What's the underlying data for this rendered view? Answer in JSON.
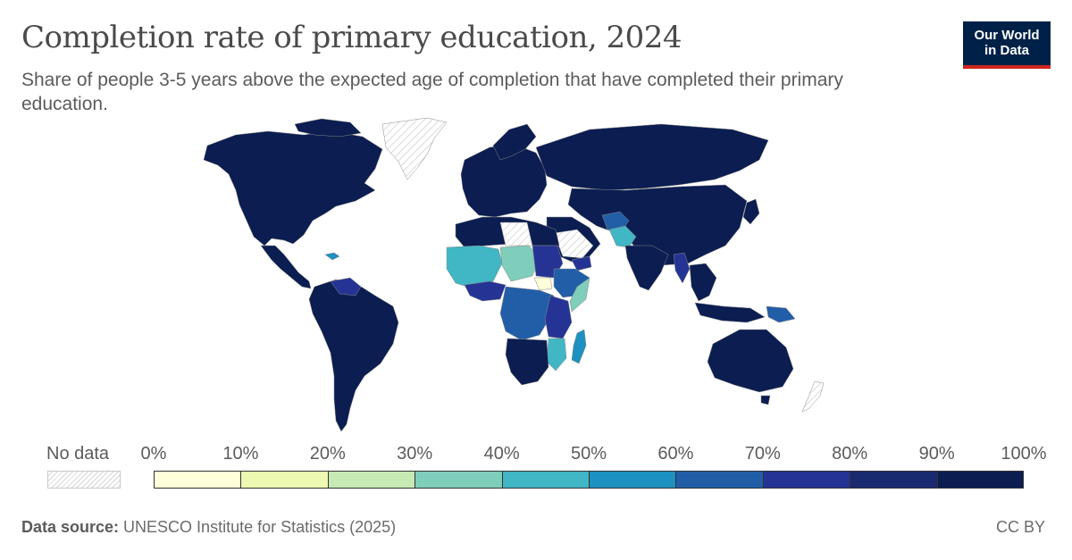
{
  "header": {
    "title": "Completion rate of primary education, 2024",
    "subtitle": "Share of people 3-5 years above the expected age of completion that have completed their primary education."
  },
  "logo": {
    "line1": "Our World",
    "line2": "in Data"
  },
  "legend": {
    "no_data_label": "No data",
    "ticks": [
      "0%",
      "10%",
      "20%",
      "30%",
      "40%",
      "50%",
      "60%",
      "70%",
      "80%",
      "90%",
      "100%"
    ],
    "bins": [
      {
        "from": 0,
        "to": 10,
        "color": "#ffffd9"
      },
      {
        "from": 10,
        "to": 20,
        "color": "#edf8b1"
      },
      {
        "from": 20,
        "to": 30,
        "color": "#c7e9b4"
      },
      {
        "from": 30,
        "to": 40,
        "color": "#7fcdbb"
      },
      {
        "from": 40,
        "to": 50,
        "color": "#41b6c4"
      },
      {
        "from": 50,
        "to": 60,
        "color": "#1d91c0"
      },
      {
        "from": 60,
        "to": 70,
        "color": "#225ea8"
      },
      {
        "from": 70,
        "to": 80,
        "color": "#253494"
      },
      {
        "from": 80,
        "to": 90,
        "color": "#1a2a70"
      },
      {
        "from": 90,
        "to": 100,
        "color": "#0b1d51"
      }
    ],
    "no_data_color": "#e8e8e8"
  },
  "footer": {
    "source_label": "Data source:",
    "source_text": " UNESCO Institute for Statistics (2025)",
    "license": "CC BY"
  }
}
